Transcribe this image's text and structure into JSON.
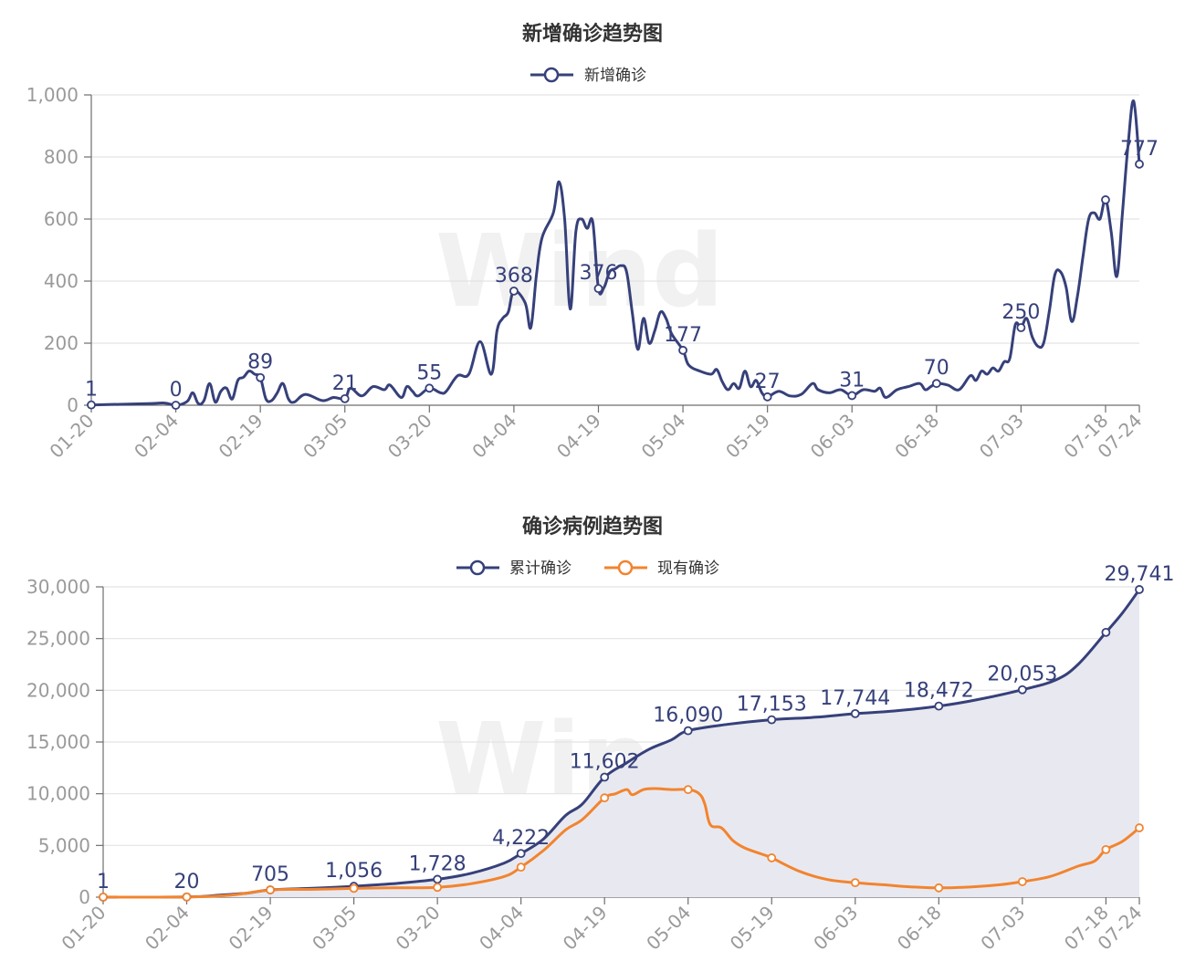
{
  "chart_data": [
    {
      "type": "line",
      "title": "新增确诊趋势图",
      "legend": [
        "新增确诊"
      ],
      "legend_position": "top-center",
      "ylim": [
        0,
        1000
      ],
      "y_ticks": [
        "0",
        "200",
        "400",
        "600",
        "800",
        "1,000"
      ],
      "x_ticks": [
        "01-20",
        "02-04",
        "02-19",
        "03-05",
        "03-20",
        "04-04",
        "04-19",
        "05-04",
        "05-19",
        "06-03",
        "06-18",
        "07-03",
        "07-18",
        "07-24"
      ],
      "grid": true,
      "series": [
        {
          "name": "新增确诊",
          "color": "#36407a",
          "points": [
            [
              "01-20",
              1
            ],
            [
              "01-25",
              3
            ],
            [
              "01-30",
              5
            ],
            [
              "02-02",
              7
            ],
            [
              "02-04",
              0
            ],
            [
              "02-06",
              12
            ],
            [
              "02-07",
              40
            ],
            [
              "02-08",
              5
            ],
            [
              "02-09",
              15
            ],
            [
              "02-10",
              70
            ],
            [
              "02-11",
              10
            ],
            [
              "02-12",
              45
            ],
            [
              "02-13",
              55
            ],
            [
              "02-14",
              20
            ],
            [
              "02-15",
              80
            ],
            [
              "02-16",
              90
            ],
            [
              "02-17",
              110
            ],
            [
              "02-18",
              100
            ],
            [
              "02-19",
              89
            ],
            [
              "02-20",
              20
            ],
            [
              "02-21",
              15
            ],
            [
              "02-22",
              40
            ],
            [
              "02-23",
              70
            ],
            [
              "02-24",
              20
            ],
            [
              "02-25",
              10
            ],
            [
              "02-27",
              35
            ],
            [
              "03-01",
              15
            ],
            [
              "03-03",
              25
            ],
            [
              "03-05",
              21
            ],
            [
              "03-06",
              55
            ],
            [
              "03-08",
              30
            ],
            [
              "03-10",
              60
            ],
            [
              "03-12",
              50
            ],
            [
              "03-13",
              65
            ],
            [
              "03-15",
              25
            ],
            [
              "03-16",
              60
            ],
            [
              "03-17",
              45
            ],
            [
              "03-18",
              30
            ],
            [
              "03-20",
              55
            ],
            [
              "03-22",
              40
            ],
            [
              "03-23",
              45
            ],
            [
              "03-25",
              95
            ],
            [
              "03-27",
              100
            ],
            [
              "03-29",
              205
            ],
            [
              "03-31",
              100
            ],
            [
              "04-01",
              240
            ],
            [
              "04-02",
              280
            ],
            [
              "04-03",
              300
            ],
            [
              "04-04",
              368
            ],
            [
              "04-06",
              330
            ],
            [
              "04-07",
              250
            ],
            [
              "04-08",
              420
            ],
            [
              "04-09",
              540
            ],
            [
              "04-11",
              620
            ],
            [
              "04-12",
              720
            ],
            [
              "04-13",
              600
            ],
            [
              "04-14",
              310
            ],
            [
              "04-15",
              560
            ],
            [
              "04-16",
              600
            ],
            [
              "04-17",
              570
            ],
            [
              "04-18",
              590
            ],
            [
              "04-19",
              376
            ],
            [
              "04-20",
              380
            ],
            [
              "04-21",
              430
            ],
            [
              "04-22",
              440
            ],
            [
              "04-23",
              450
            ],
            [
              "04-24",
              430
            ],
            [
              "04-25",
              300
            ],
            [
              "04-26",
              180
            ],
            [
              "04-27",
              280
            ],
            [
              "04-28",
              200
            ],
            [
              "04-29",
              240
            ],
            [
              "04-30",
              300
            ],
            [
              "05-01",
              280
            ],
            [
              "05-02",
              230
            ],
            [
              "05-04",
              177
            ],
            [
              "05-05",
              130
            ],
            [
              "05-07",
              110
            ],
            [
              "05-09",
              100
            ],
            [
              "05-10",
              115
            ],
            [
              "05-11",
              75
            ],
            [
              "05-12",
              50
            ],
            [
              "05-13",
              70
            ],
            [
              "05-14",
              55
            ],
            [
              "05-15",
              110
            ],
            [
              "05-16",
              60
            ],
            [
              "05-17",
              80
            ],
            [
              "05-18",
              40
            ],
            [
              "05-19",
              27
            ],
            [
              "05-21",
              45
            ],
            [
              "05-23",
              30
            ],
            [
              "05-25",
              35
            ],
            [
              "05-27",
              70
            ],
            [
              "05-28",
              50
            ],
            [
              "05-30",
              40
            ],
            [
              "06-01",
              50
            ],
            [
              "06-03",
              31
            ],
            [
              "06-05",
              50
            ],
            [
              "06-07",
              45
            ],
            [
              "06-08",
              55
            ],
            [
              "06-09",
              25
            ],
            [
              "06-11",
              50
            ],
            [
              "06-13",
              60
            ],
            [
              "06-15",
              70
            ],
            [
              "06-16",
              50
            ],
            [
              "06-17",
              60
            ],
            [
              "06-18",
              70
            ],
            [
              "06-20",
              65
            ],
            [
              "06-22",
              50
            ],
            [
              "06-24",
              95
            ],
            [
              "06-25",
              80
            ],
            [
              "06-26",
              110
            ],
            [
              "06-27",
              100
            ],
            [
              "06-28",
              120
            ],
            [
              "06-29",
              110
            ],
            [
              "06-30",
              140
            ],
            [
              "07-01",
              150
            ],
            [
              "07-02",
              260
            ],
            [
              "07-03",
              250
            ],
            [
              "07-04",
              280
            ],
            [
              "07-05",
              220
            ],
            [
              "07-06",
              190
            ],
            [
              "07-07",
              200
            ],
            [
              "07-08",
              300
            ],
            [
              "07-09",
              420
            ],
            [
              "07-10",
              430
            ],
            [
              "07-11",
              380
            ],
            [
              "07-12",
              270
            ],
            [
              "07-13",
              350
            ],
            [
              "07-14",
              480
            ],
            [
              "07-15",
              600
            ],
            [
              "07-16",
              620
            ],
            [
              "07-17",
              600
            ],
            [
              "07-18",
              662
            ],
            [
              "07-19",
              560
            ],
            [
              "07-20",
              415
            ],
            [
              "07-21",
              620
            ],
            [
              "07-22",
              840
            ],
            [
              "07-23",
              980
            ],
            [
              "07-24",
              777
            ]
          ],
          "labeled_points": [
            [
              "01-20",
              1
            ],
            [
              "02-04",
              0
            ],
            [
              "02-19",
              89
            ],
            [
              "03-05",
              21
            ],
            [
              "03-20",
              55
            ],
            [
              "04-04",
              368
            ],
            [
              "04-19",
              376
            ],
            [
              "05-04",
              177
            ],
            [
              "05-19",
              27
            ],
            [
              "06-03",
              31
            ],
            [
              "06-18",
              70
            ],
            [
              "07-03",
              250
            ],
            [
              "07-24",
              777
            ]
          ],
          "marker_points": [
            "01-20",
            "02-04",
            "02-19",
            "03-05",
            "03-20",
            "04-04",
            "04-19",
            "05-04",
            "05-19",
            "06-03",
            "06-18",
            "07-03",
            "07-18",
            "07-24"
          ]
        }
      ]
    },
    {
      "type": "area",
      "title": "确诊病例趋势图",
      "legend": [
        "累计确诊",
        "现有确诊"
      ],
      "legend_position": "top-center",
      "ylim": [
        0,
        30000
      ],
      "y_ticks": [
        "0",
        "5,000",
        "10,000",
        "15,000",
        "20,000",
        "25,000",
        "30,000"
      ],
      "x_ticks": [
        "01-20",
        "02-04",
        "02-19",
        "03-05",
        "03-20",
        "04-04",
        "04-19",
        "05-04",
        "05-19",
        "06-03",
        "06-18",
        "07-03",
        "07-18",
        "07-24"
      ],
      "grid": true,
      "series": [
        {
          "name": "累计确诊",
          "color": "#36407a",
          "fill": "#e8e9f0",
          "points": [
            [
              "01-20",
              1
            ],
            [
              "02-04",
              20
            ],
            [
              "02-10",
              200
            ],
            [
              "02-15",
              400
            ],
            [
              "02-19",
              705
            ],
            [
              "02-26",
              850
            ],
            [
              "03-05",
              1056
            ],
            [
              "03-12",
              1300
            ],
            [
              "03-20",
              1728
            ],
            [
              "03-26",
              2300
            ],
            [
              "04-01",
              3300
            ],
            [
              "04-04",
              4222
            ],
            [
              "04-08",
              5600
            ],
            [
              "04-12",
              7900
            ],
            [
              "04-15",
              9000
            ],
            [
              "04-19",
              11602
            ],
            [
              "04-23",
              13000
            ],
            [
              "04-27",
              14300
            ],
            [
              "05-01",
              15200
            ],
            [
              "05-04",
              16090
            ],
            [
              "05-11",
              16700
            ],
            [
              "05-19",
              17153
            ],
            [
              "05-27",
              17400
            ],
            [
              "06-03",
              17744
            ],
            [
              "06-10",
              18000
            ],
            [
              "06-18",
              18472
            ],
            [
              "06-25",
              19100
            ],
            [
              "07-03",
              20053
            ],
            [
              "07-09",
              21000
            ],
            [
              "07-13",
              22500
            ],
            [
              "07-18",
              25600
            ],
            [
              "07-21",
              27500
            ],
            [
              "07-24",
              29741
            ]
          ],
          "labeled_points": [
            [
              "01-20",
              1
            ],
            [
              "02-04",
              20
            ],
            [
              "02-19",
              705
            ],
            [
              "03-05",
              1056
            ],
            [
              "03-20",
              1728
            ],
            [
              "04-04",
              4222
            ],
            [
              "04-19",
              11602
            ],
            [
              "05-04",
              16090
            ],
            [
              "05-19",
              17153
            ],
            [
              "06-03",
              17744
            ],
            [
              "06-18",
              18472
            ],
            [
              "07-03",
              20053
            ],
            [
              "07-24",
              29741
            ]
          ],
          "marker_points": [
            "01-20",
            "02-04",
            "02-19",
            "03-05",
            "03-20",
            "04-04",
            "04-19",
            "05-04",
            "05-19",
            "06-03",
            "06-18",
            "07-03",
            "07-18",
            "07-24"
          ]
        },
        {
          "name": "现有确诊",
          "color": "#f2842f",
          "points": [
            [
              "01-20",
              10
            ],
            [
              "02-04",
              20
            ],
            [
              "02-12",
              200
            ],
            [
              "02-19",
              700
            ],
            [
              "02-26",
              750
            ],
            [
              "03-05",
              850
            ],
            [
              "03-12",
              900
            ],
            [
              "03-20",
              950
            ],
            [
              "03-26",
              1300
            ],
            [
              "04-01",
              2000
            ],
            [
              "04-04",
              2900
            ],
            [
              "04-08",
              4500
            ],
            [
              "04-12",
              6500
            ],
            [
              "04-15",
              7500
            ],
            [
              "04-19",
              9600
            ],
            [
              "04-21",
              10000
            ],
            [
              "04-23",
              10400
            ],
            [
              "04-24",
              9900
            ],
            [
              "04-26",
              10400
            ],
            [
              "04-28",
              10500
            ],
            [
              "05-01",
              10400
            ],
            [
              "05-04",
              10400
            ],
            [
              "05-06",
              10000
            ],
            [
              "05-07",
              9000
            ],
            [
              "05-08",
              7000
            ],
            [
              "05-10",
              6700
            ],
            [
              "05-12",
              5500
            ],
            [
              "05-14",
              4800
            ],
            [
              "05-17",
              4200
            ],
            [
              "05-19",
              3800
            ],
            [
              "05-24",
              2500
            ],
            [
              "05-29",
              1700
            ],
            [
              "06-03",
              1400
            ],
            [
              "06-08",
              1200
            ],
            [
              "06-13",
              1000
            ],
            [
              "06-18",
              900
            ],
            [
              "06-24",
              1000
            ],
            [
              "06-29",
              1200
            ],
            [
              "07-03",
              1500
            ],
            [
              "07-08",
              2000
            ],
            [
              "07-13",
              3000
            ],
            [
              "07-16",
              3500
            ],
            [
              "07-18",
              4600
            ],
            [
              "07-21",
              5400
            ],
            [
              "07-24",
              6700
            ]
          ],
          "marker_points": [
            "01-20",
            "02-04",
            "02-19",
            "03-05",
            "03-20",
            "04-04",
            "04-19",
            "05-04",
            "05-19",
            "06-03",
            "06-18",
            "07-03",
            "07-18",
            "07-24"
          ]
        }
      ]
    }
  ]
}
